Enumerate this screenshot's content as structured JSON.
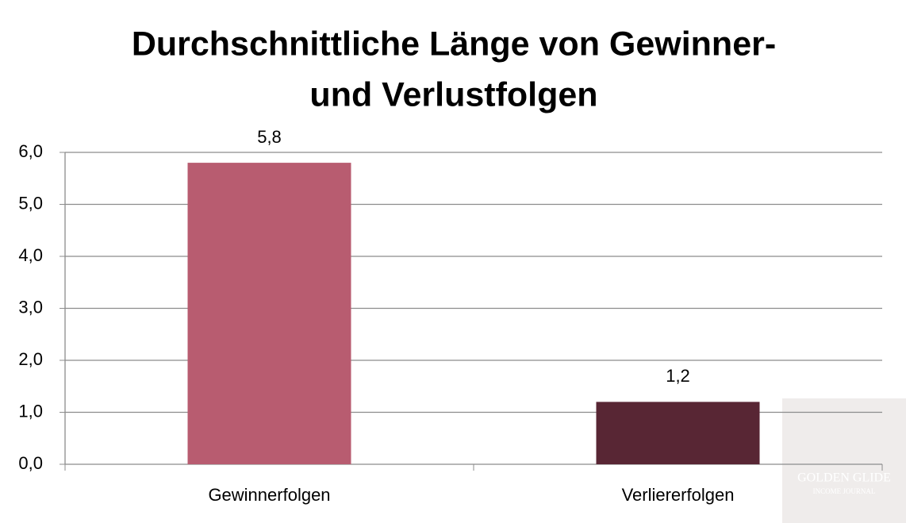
{
  "chart_data": {
    "type": "bar",
    "title": [
      "Durchschnittliche Länge von Gewinner-",
      "und Verlustfolgen"
    ],
    "categories": [
      "Gewinnerfolgen",
      "Verliererfolgen"
    ],
    "values": [
      5.8,
      1.2
    ],
    "value_labels": [
      "5,8",
      "1,2"
    ],
    "colors": [
      "#b85c70",
      "#582634"
    ],
    "ylim": [
      0,
      6
    ],
    "yticks": [
      {
        "value": 0,
        "label": "0,0"
      },
      {
        "value": 1,
        "label": "1,0"
      },
      {
        "value": 2,
        "label": "2,0"
      },
      {
        "value": 3,
        "label": "3,0"
      },
      {
        "value": 4,
        "label": "4,0"
      },
      {
        "value": 5,
        "label": "5,0"
      },
      {
        "value": 6,
        "label": "6,0"
      }
    ],
    "grid": true,
    "watermark": [
      "GOLDEN GLIDE",
      "INCOME JOURNAL"
    ]
  }
}
